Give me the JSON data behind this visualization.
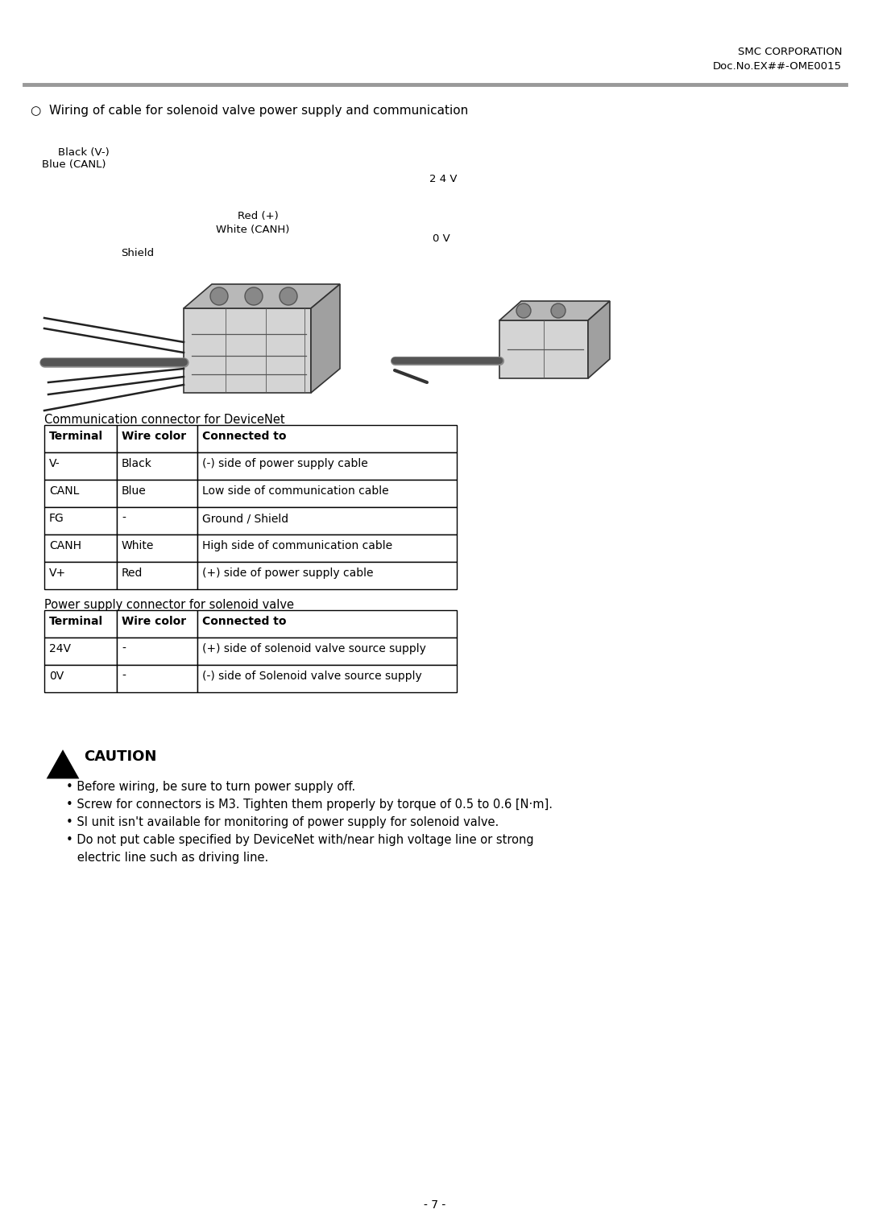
{
  "header_right_line1": "SMC CORPORATION",
  "header_right_line2": "Doc.No.EX##-OME0015",
  "section_title": "○  Wiring of cable for solenoid valve power supply and communication",
  "comm_table_title": "Communication connector for DeviceNet",
  "comm_table_headers": [
    "Terminal",
    "Wire color",
    "Connected to"
  ],
  "comm_table_rows": [
    [
      "V-",
      "Black",
      "(-) side of power supply cable"
    ],
    [
      "CANL",
      "Blue",
      "Low side of communication cable"
    ],
    [
      "FG",
      "-",
      "Ground / Shield"
    ],
    [
      "CANH",
      "White",
      "High side of communication cable"
    ],
    [
      "V+",
      "Red",
      "(+) side of power supply cable"
    ]
  ],
  "power_table_title": "Power supply connector for solenoid valve",
  "power_table_headers": [
    "Terminal",
    "Wire color",
    "Connected to"
  ],
  "power_table_rows": [
    [
      "24V",
      "-",
      "(+) side of solenoid valve source supply"
    ],
    [
      "0V",
      "-",
      "(-) side of Solenoid valve source supply"
    ]
  ],
  "caution_title": "CAUTION",
  "caution_bullets": [
    "• Before wiring, be sure to turn power supply off.",
    "• Screw for connectors is M3. Tighten them properly by torque of 0.5 to 0.6 [N·m].",
    "• SI unit isn't available for monitoring of power supply for solenoid valve.",
    "• Do not put cable specified by DeviceNet with/near high voltage line or strong",
    "   electric line such as driving line."
  ],
  "page_number": "- 7 -",
  "bg_color": "#ffffff",
  "text_color": "#000000",
  "header_bar_color": "#999999"
}
